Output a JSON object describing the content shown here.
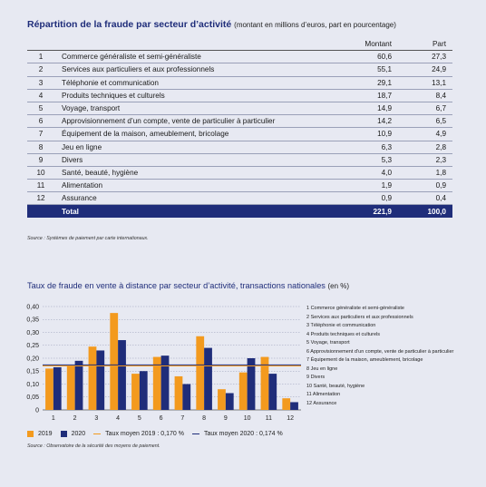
{
  "table": {
    "title": "Répartition de la fraude par secteur d’activité",
    "subtitle": "(montant en millions d’euros, part en pourcentage)",
    "headers": {
      "montant": "Montant",
      "part": "Part"
    },
    "rows": [
      {
        "num": "1",
        "label": "Commerce généraliste et semi-généraliste",
        "montant": "60,6",
        "part": "27,3"
      },
      {
        "num": "2",
        "label": "Services aux particuliers et aux professionnels",
        "montant": "55,1",
        "part": "24,9"
      },
      {
        "num": "3",
        "label": "Téléphonie et communication",
        "montant": "29,1",
        "part": "13,1"
      },
      {
        "num": "4",
        "label": "Produits techniques et culturels",
        "montant": "18,7",
        "part": "8,4"
      },
      {
        "num": "5",
        "label": "Voyage, transport",
        "montant": "14,9",
        "part": "6,7"
      },
      {
        "num": "6",
        "label": "Approvisionnement d’un compte, vente de particulier à particulier",
        "montant": "14,2",
        "part": "6,5"
      },
      {
        "num": "7",
        "label": "Équipement de la maison, ameublement, bricolage",
        "montant": "10,9",
        "part": "4,9"
      },
      {
        "num": "8",
        "label": "Jeu en ligne",
        "montant": "6,3",
        "part": "2,8"
      },
      {
        "num": "9",
        "label": "Divers",
        "montant": "5,3",
        "part": "2,3"
      },
      {
        "num": "10",
        "label": "Santé, beauté, hygiène",
        "montant": "4,0",
        "part": "1,8"
      },
      {
        "num": "11",
        "label": "Alimentation",
        "montant": "1,9",
        "part": "0,9"
      },
      {
        "num": "12",
        "label": "Assurance",
        "montant": "0,9",
        "part": "0,4"
      }
    ],
    "total": {
      "label": "Total",
      "montant": "221,9",
      "part": "100,0"
    },
    "source": "Source : Systèmes de paiement par carte internationaux."
  },
  "chart": {
    "title": "Taux de fraude en vente à distance par secteur d’activité, transactions nationales",
    "title_unit": "(en %)",
    "side_legend": [
      "1 Commerce généraliste et semi-généraliste",
      "2 Services aux particuliers et aux professionnels",
      "3 Téléphonie et communication",
      "4 Produits techniques et culturels",
      "5 Voyage, transport",
      "6 Approvisionnement d’un compte, vente de particulier à particulier",
      "7 Équipement de la maison, ameublement, bricolage",
      "8 Jeu en ligne",
      "9 Divers",
      "10 Santé, beauté, hygiène",
      "11 Alimentation",
      "12 Assurance"
    ],
    "legend": {
      "s2019": "2019",
      "s2020": "2020",
      "avg2019": "Taux moyen 2019 : 0,170 %",
      "avg2020": "Taux moyen 2020 : 0,174 %"
    },
    "source": "Source : Observatoire de la sécurité des moyens de paiement.",
    "colors": {
      "c2019": "#f39a1e",
      "c2020": "#1f2d7a",
      "avg2019": "#f39a1e",
      "avg2020": "#1f2d7a",
      "grid": "#9aa0b8"
    }
  },
  "chart_data": {
    "type": "bar",
    "title": "Taux de fraude en vente à distance par secteur d’activité, transactions nationales",
    "categories": [
      "1",
      "2",
      "3",
      "4",
      "5",
      "6",
      "7",
      "8",
      "9",
      "10",
      "11",
      "12"
    ],
    "series": [
      {
        "name": "2019",
        "values": [
          0.16,
          0.17,
          0.245,
          0.375,
          0.14,
          0.205,
          0.13,
          0.285,
          0.08,
          0.145,
          0.205,
          0.045
        ]
      },
      {
        "name": "2020",
        "values": [
          0.165,
          0.19,
          0.23,
          0.27,
          0.15,
          0.21,
          0.1,
          0.24,
          0.065,
          0.2,
          0.14,
          0.03
        ]
      }
    ],
    "reference_lines": [
      {
        "name": "Taux moyen 2019 : 0,170 %",
        "value": 0.17
      },
      {
        "name": "Taux moyen 2020 : 0,174 %",
        "value": 0.174
      }
    ],
    "ylim": [
      0,
      0.4
    ],
    "yticks": [
      "0",
      "0,05",
      "0,10",
      "0,15",
      "0,20",
      "0,25",
      "0,30",
      "0,35",
      "0,40"
    ],
    "grid": true,
    "legend_position": "bottom"
  }
}
